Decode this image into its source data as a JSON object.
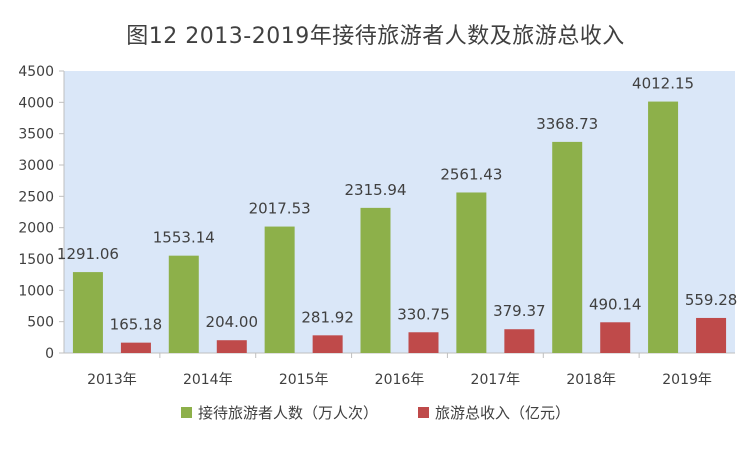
{
  "title": "图12    2013-2019年接待旅游者人数及旅游总收入",
  "colors": {
    "plot_background": "#dae7f8",
    "series_visitors": "#8db04a",
    "series_revenue": "#bf4a4a",
    "axis": "#bfbfbf"
  },
  "chart_data": {
    "type": "bar",
    "title": "图12    2013-2019年接待旅游者人数及旅游总收入",
    "categories": [
      "2013年",
      "2014年",
      "2015年",
      "2016年",
      "2017年",
      "2018年",
      "2019年"
    ],
    "series": [
      {
        "name": "接待旅游者人数（万人次）",
        "values": [
          1291.06,
          1553.14,
          2017.53,
          2315.94,
          2561.43,
          3368.73,
          4012.15
        ],
        "labels": [
          "1291.06",
          "1553.14",
          "2017.53",
          "2315.94",
          "2561.43",
          "3368.73",
          "4012.15"
        ]
      },
      {
        "name": "旅游总收入（亿元）",
        "values": [
          165.18,
          204.0,
          281.92,
          330.75,
          379.37,
          490.14,
          559.28
        ],
        "labels": [
          "165.18",
          "204.00",
          "281.92",
          "330.75",
          "379.37",
          "490.14",
          "559.28"
        ]
      }
    ],
    "y_ticks": [
      0,
      500,
      1000,
      1500,
      2000,
      2500,
      3000,
      3500,
      4000,
      4500
    ],
    "ylim": [
      0,
      4500
    ],
    "xlabel": "",
    "ylabel": "",
    "grid": false,
    "legend_position": "bottom"
  }
}
